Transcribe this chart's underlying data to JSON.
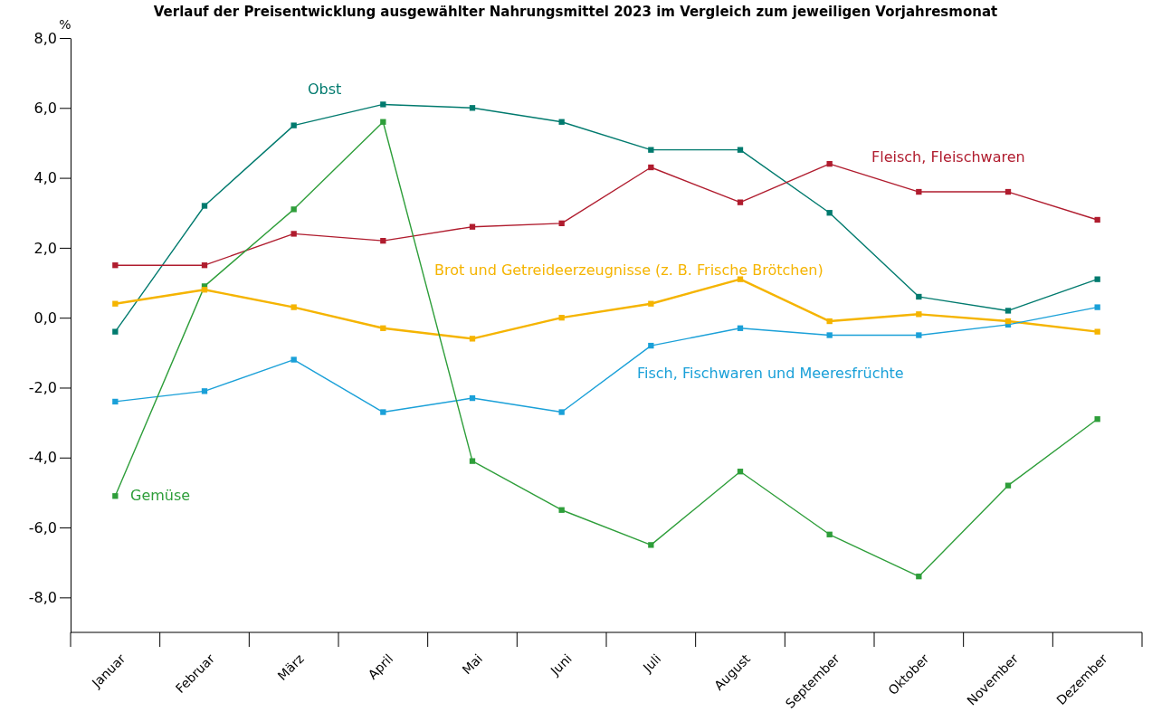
{
  "chart_data": {
    "type": "line",
    "title": "Verlauf der Preisentwicklung ausgewählter Nahrungsmittel 2023 im Vergleich zum jeweiligen Vorjahresmonat",
    "ylabel": "%",
    "categories": [
      "Januar",
      "Februar",
      "März",
      "April",
      "Mai",
      "Juni",
      "Juli",
      "August",
      "September",
      "Oktober",
      "November",
      "Dezember"
    ],
    "ylim": [
      -9,
      8
    ],
    "yticks": [
      {
        "value": -8,
        "label": "-8,0"
      },
      {
        "value": -6,
        "label": "-6,0"
      },
      {
        "value": -4,
        "label": "-4,0"
      },
      {
        "value": -2,
        "label": "-2,0"
      },
      {
        "value": 0,
        "label": "0,0"
      },
      {
        "value": 2,
        "label": "2,0"
      },
      {
        "value": 4,
        "label": "4,0"
      },
      {
        "value": 6,
        "label": "6,0"
      },
      {
        "value": 8,
        "label": "8,0"
      }
    ],
    "grid": false,
    "legend": false,
    "marker": "square",
    "line_style": "solid",
    "series": [
      {
        "name": "Obst",
        "color": "#007a6e",
        "values": [
          -0.4,
          3.2,
          5.5,
          6.1,
          6.0,
          5.6,
          4.8,
          4.8,
          3.0,
          0.6,
          0.2,
          1.1
        ]
      },
      {
        "name": "Fleisch, Fleischwaren",
        "color": "#b01c2e",
        "values": [
          1.5,
          1.5,
          2.4,
          2.2,
          2.6,
          2.7,
          4.3,
          3.3,
          4.4,
          3.6,
          3.6,
          2.8
        ]
      },
      {
        "name": "Brot und Getreideerzeugnisse (z. B. Frische Brötchen)",
        "color": "#f5b400",
        "values": [
          0.4,
          0.8,
          0.3,
          -0.3,
          -0.6,
          0.0,
          0.4,
          1.1,
          -0.1,
          0.1,
          -0.1,
          -0.4
        ]
      },
      {
        "name": "Fisch, Fischwaren und Meeresfrüchte",
        "color": "#1aa0d8",
        "values": [
          -2.4,
          -2.1,
          -1.2,
          -2.7,
          -2.3,
          -2.7,
          -0.8,
          -0.3,
          -0.5,
          -0.5,
          -0.2,
          0.3
        ]
      },
      {
        "name": "Gemüse",
        "color": "#2e9e3a",
        "values": [
          -5.1,
          0.9,
          3.1,
          5.6,
          -4.1,
          -5.5,
          -6.5,
          -4.4,
          -6.2,
          -7.4,
          -4.8,
          -2.9
        ]
      }
    ]
  }
}
